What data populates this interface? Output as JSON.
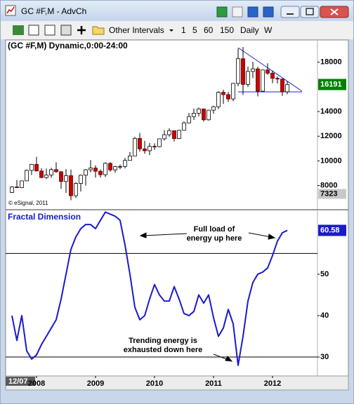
{
  "window": {
    "title": "GC #F,M - AdvCh"
  },
  "toolbar": {
    "dropdown": "Other Intervals",
    "intervals": [
      "1",
      "5",
      "60",
      "150",
      "Daily",
      "W"
    ]
  },
  "x_cursor_label": "12/07",
  "chart_data": [
    {
      "type": "candlestick",
      "title": "(GC #F,M) Dynamic,0:00-24:00",
      "credit": "© eSignal, 2011",
      "open": [
        7440,
        7890,
        7830,
        8380,
        9230,
        9720,
        9180,
        8650,
        8850,
        9290,
        9120,
        8330,
        8800,
        7180,
        8170,
        8840,
        9280,
        9420,
        9160,
        8880,
        9800,
        9270,
        9540,
        9550,
        10040,
        10400,
        11820,
        10970,
        10820,
        11180,
        11150,
        11790,
        12120,
        12450,
        11810,
        12480,
        13080,
        13590,
        13860,
        14210,
        13330,
        14110,
        14390,
        15560,
        15370,
        15020,
        16280,
        18280,
        16200,
        17250,
        17460,
        15650,
        17370,
        17110,
        16690,
        16640,
        15600
      ],
      "high": [
        7950,
        8450,
        8400,
        9300,
        9750,
        10330,
        9400,
        9380,
        9450,
        9880,
        9170,
        9340,
        9300,
        8280,
        8890,
        9330,
        10070,
        9640,
        9300,
        9890,
        9900,
        9600,
        9700,
        10240,
        10720,
        11950,
        12270,
        11620,
        11450,
        11420,
        11810,
        12490,
        12650,
        12450,
        12500,
        13200,
        13880,
        14250,
        14320,
        14240,
        14140,
        14480,
        15650,
        15770,
        15590,
        16320,
        19110,
        19230,
        17640,
        18030,
        17640,
        17400,
        17910,
        17330,
        16850,
        16660,
        16450
      ],
      "low": [
        7400,
        7800,
        7800,
        8360,
        8850,
        9150,
        8600,
        8530,
        8640,
        9050,
        7740,
        7400,
        6810,
        6990,
        7520,
        8000,
        9080,
        8650,
        8650,
        8690,
        9130,
        9050,
        9320,
        9400,
        10020,
        10400,
        10750,
        10580,
        10460,
        10890,
        11100,
        11650,
        11960,
        11570,
        11760,
        12460,
        13050,
        13320,
        13610,
        13190,
        13270,
        13820,
        14190,
        14620,
        14780,
        14830,
        16060,
        15350,
        15980,
        16710,
        15230,
        15560,
        16980,
        16300,
        16270,
        15270,
        15400
      ],
      "close": [
        7890,
        7830,
        8380,
        9230,
        9720,
        9180,
        8650,
        8850,
        9290,
        9120,
        8330,
        8800,
        7180,
        8170,
        8840,
        9280,
        9420,
        9160,
        8880,
        9800,
        9270,
        9540,
        9550,
        10040,
        10400,
        11820,
        10970,
        10820,
        11180,
        11150,
        11790,
        12120,
        12450,
        11810,
        12480,
        13080,
        13590,
        13860,
        14210,
        13330,
        14110,
        14390,
        15560,
        15370,
        15020,
        16280,
        18280,
        16200,
        17250,
        17460,
        15650,
        17370,
        17110,
        16690,
        16640,
        15600,
        16191
      ],
      "up_color": "#ffffff",
      "down_color": "#cc0000",
      "last_label_color": "#008000",
      "cursor_value": 7323,
      "ylim": [
        6100,
        19800
      ],
      "yticks": [
        8000,
        10000,
        12000,
        14000,
        18000
      ],
      "grid": false
    },
    {
      "type": "line",
      "title": "Fractal Dimension",
      "categories": [
        null,
        null,
        null,
        null,
        null,
        "2008",
        null,
        null,
        null,
        null,
        null,
        null,
        null,
        null,
        null,
        null,
        null,
        "2009",
        null,
        null,
        null,
        null,
        null,
        null,
        null,
        null,
        null,
        null,
        null,
        "2010",
        null,
        null,
        null,
        null,
        null,
        null,
        null,
        null,
        null,
        null,
        null,
        "2011",
        null,
        null,
        null,
        null,
        null,
        null,
        null,
        null,
        null,
        null,
        null,
        "2012",
        null,
        null,
        null
      ],
      "values": [
        40,
        34,
        40,
        31.5,
        29.5,
        30.5,
        33,
        35,
        37,
        39,
        44,
        50,
        56,
        59,
        61,
        62,
        62,
        61,
        63,
        65,
        64.5,
        64,
        63,
        57,
        50,
        42,
        39,
        40,
        44,
        47.5,
        45,
        43.5,
        43.5,
        47,
        44,
        40.5,
        40,
        41,
        45,
        43,
        45,
        39.5,
        35,
        37,
        41.5,
        38,
        28,
        35,
        43.5,
        48,
        50,
        50.5,
        51.5,
        54.5,
        58,
        60,
        60.58
      ],
      "color": "#1a1acc",
      "reference_lines": [
        55,
        30
      ],
      "ylim": [
        25.6,
        65.4
      ],
      "yticks": [
        30,
        40,
        50
      ],
      "grid": false,
      "annotations": [
        {
          "lines": [
            "Full load of",
            "energy up here"
          ]
        },
        {
          "lines": [
            "Trending energy is",
            "exhausted down here"
          ]
        }
      ]
    }
  ]
}
